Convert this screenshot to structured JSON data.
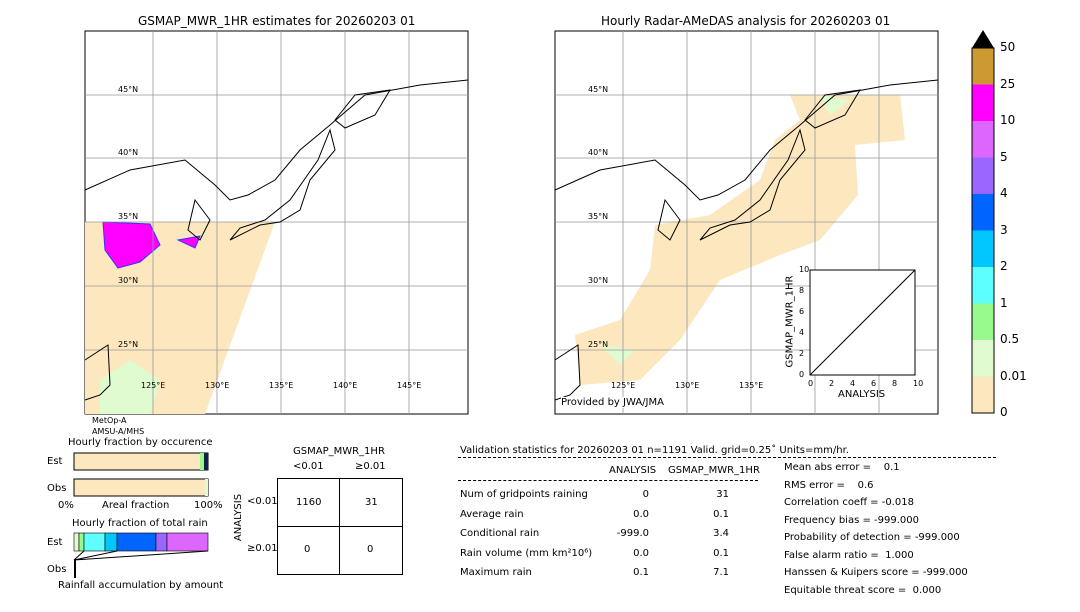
{
  "left_map": {
    "title": "GSMAP_MWR_1HR estimates for 20260203 01",
    "sensor_line1": "MetOp-A",
    "sensor_line2": "AMSU-A/MHS"
  },
  "right_map": {
    "title": "Hourly Radar-AMeDAS analysis for 20260203 01",
    "credit": "Provided by JWA/JMA"
  },
  "lat_labels": [
    "45°N",
    "40°N",
    "35°N",
    "30°N",
    "25°N"
  ],
  "lon_labels": [
    "125°E",
    "130°E",
    "135°E",
    "140°E",
    "145°E"
  ],
  "colorbar": {
    "labels": [
      "0",
      "0.01",
      "0.5",
      "1",
      "2",
      "3",
      "4",
      "5",
      "10",
      "25",
      "50"
    ],
    "colors": [
      "#fde7bf",
      "#e0fbd0",
      "#98f98d",
      "#5effff",
      "#00c8ff",
      "#0064ff",
      "#9966ff",
      "#dd66ff",
      "#ff00ff",
      "#cc9933"
    ],
    "extend_color": "#000000"
  },
  "inset": {
    "ylabel": "GSMAP_MWR_1HR",
    "xlabel": "ANALYSIS",
    "ticks": [
      "0",
      "2",
      "4",
      "6",
      "8",
      "10"
    ]
  },
  "chart_data": {
    "type": "table",
    "title": "Validation statistics for 20260203 01  n=1191 Valid. grid=0.25˚ Units=mm/hr.",
    "columns": [
      "ANALYSIS",
      "GSMAP_MWR_1HR"
    ],
    "rows": [
      {
        "label": "Num of gridpoints raining",
        "values": [
          "0",
          "31"
        ]
      },
      {
        "label": "Average rain",
        "values": [
          "0.0",
          "0.1"
        ]
      },
      {
        "label": "Conditional rain",
        "values": [
          "-999.0",
          "3.4"
        ]
      },
      {
        "label": "Rain volume (mm km²10⁶)",
        "values": [
          "0.0",
          "0.1"
        ]
      },
      {
        "label": "Maximum rain",
        "values": [
          "0.1",
          "7.1"
        ]
      }
    ],
    "scores": [
      "Mean abs error =    0.1",
      "RMS error =    0.6",
      "Correlation coeff = -0.018",
      "Frequency bias = -999.000",
      "Probability of detection = -999.000",
      "False alarm ratio =  1.000",
      "Hanssen & Kuipers score = -999.000",
      "Equitable threat score =  0.000"
    ]
  },
  "occurrence": {
    "title": "Hourly fraction by occurence",
    "est": "Est",
    "obs": "Obs",
    "x0": "0%",
    "xlabel": "Areal fraction",
    "x1": "100%"
  },
  "totalrain": {
    "title": "Hourly fraction of total rain",
    "est": "Est",
    "obs": "Obs",
    "footer": "Rainfall accumulation by amount"
  },
  "contingency": {
    "title": "GSMAP_MWR_1HR",
    "col1": "<0.01",
    "col2": "≥0.01",
    "row_axis": "ANALYSIS",
    "row1": "<0.01",
    "row2": "≥0.01",
    "cells": [
      "1160",
      "31",
      "0",
      "0"
    ]
  }
}
